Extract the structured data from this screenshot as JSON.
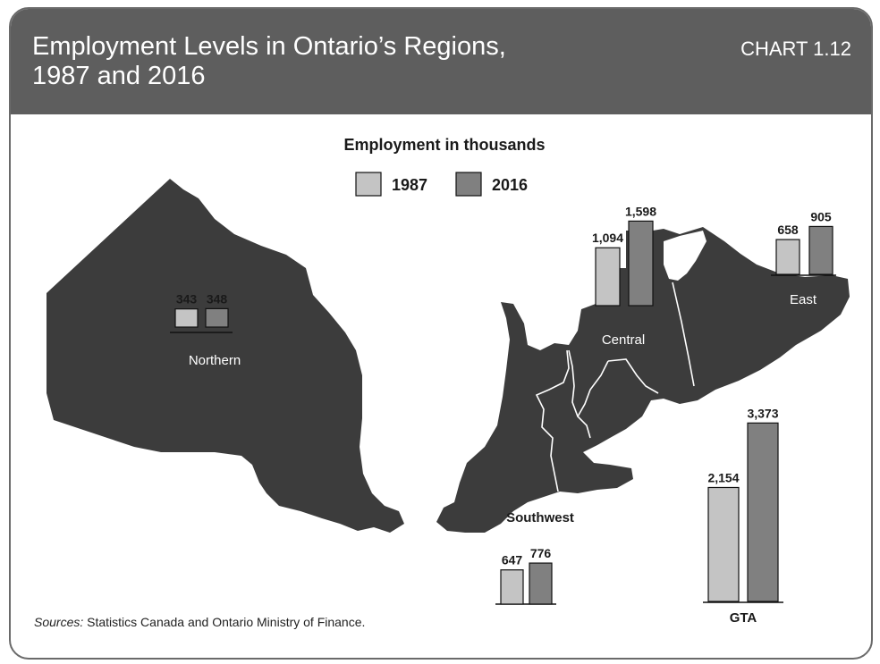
{
  "header": {
    "title": "Employment Levels in Ontario’s Regions,\n1987 and 2016",
    "chart_number": "CHART 1.12"
  },
  "source": {
    "prefix": "Sources:",
    "text": " Statistics Canada and Ontario Ministry of Finance."
  },
  "colors": {
    "y1987": "#c4c4c4",
    "y2016": "#808080",
    "map": "#3c3c3c",
    "header": "#5e5e5e"
  },
  "chart_data": {
    "type": "bar",
    "title": "Employment in thousands",
    "series": [
      {
        "name": "1987",
        "values": [
          343,
          1094,
          658,
          647,
          2154
        ]
      },
      {
        "name": "2016",
        "values": [
          348,
          1598,
          905,
          776,
          3373
        ]
      }
    ],
    "categories": [
      "Northern",
      "Central",
      "East",
      "Southwest",
      "GTA"
    ],
    "value_labels": {
      "1987": [
        "343",
        "1,094",
        "658",
        "647",
        "2,154"
      ],
      "2016": [
        "348",
        "1,598",
        "905",
        "776",
        "3,373"
      ]
    }
  }
}
